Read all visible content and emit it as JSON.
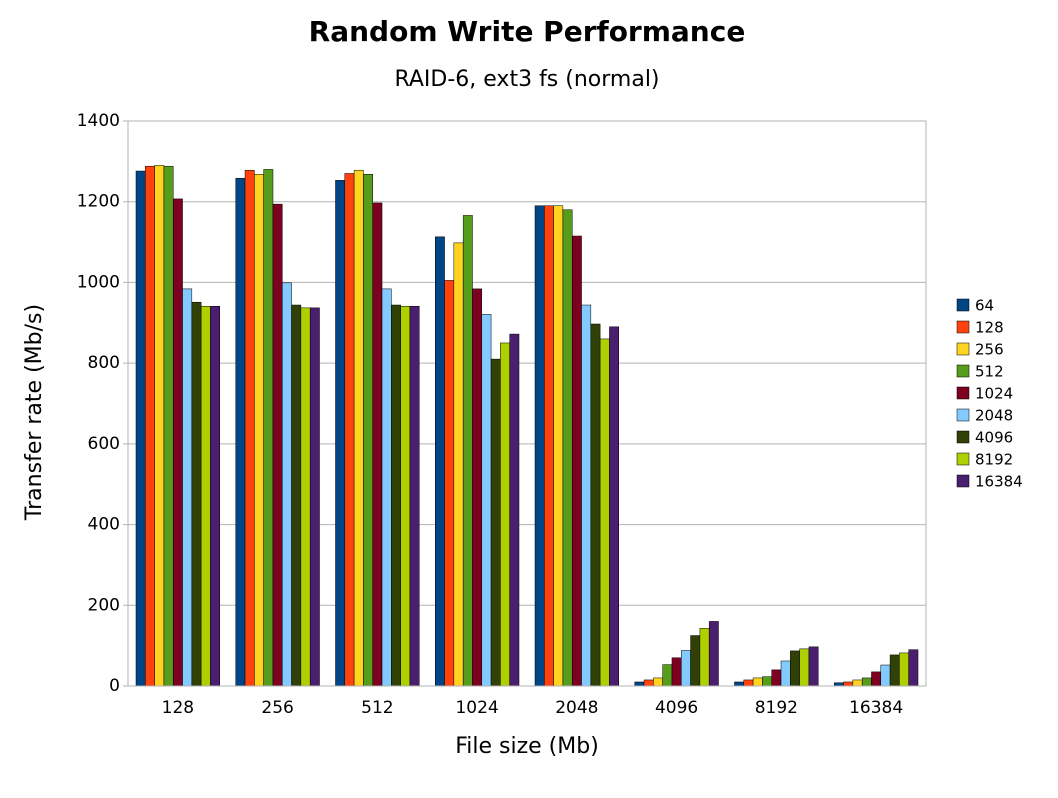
{
  "chart_data": {
    "type": "bar",
    "title": "Random Write Performance",
    "subtitle": "RAID-6, ext3 fs (normal)",
    "x_label": "File size (Mb)",
    "y_label": "Transfer rate (Mb/s)",
    "categories": [
      "128",
      "256",
      "512",
      "1024",
      "2048",
      "4096",
      "8192",
      "16384"
    ],
    "series": [
      {
        "name": "64",
        "color": "#004586",
        "values": [
          1276,
          1258,
          1253,
          1113,
          1190,
          10,
          10,
          8
        ]
      },
      {
        "name": "128",
        "color": "#ff420e",
        "values": [
          1288,
          1278,
          1270,
          1005,
          1190,
          15,
          15,
          10
        ]
      },
      {
        "name": "256",
        "color": "#ffd320",
        "values": [
          1290,
          1268,
          1278,
          1098,
          1190,
          20,
          20,
          15
        ]
      },
      {
        "name": "512",
        "color": "#579d1c",
        "values": [
          1288,
          1280,
          1268,
          1166,
          1180,
          53,
          23,
          20
        ]
      },
      {
        "name": "1024",
        "color": "#7e0021",
        "values": [
          1207,
          1194,
          1197,
          984,
          1115,
          70,
          40,
          35
        ]
      },
      {
        "name": "2048",
        "color": "#83caff",
        "values": [
          984,
          999,
          984,
          921,
          944,
          88,
          62,
          52
        ]
      },
      {
        "name": "4096",
        "color": "#314004",
        "values": [
          951,
          944,
          944,
          810,
          897,
          125,
          87,
          77
        ]
      },
      {
        "name": "8192",
        "color": "#aecf00",
        "values": [
          941,
          937,
          941,
          850,
          860,
          143,
          92,
          82
        ]
      },
      {
        "name": "16384",
        "color": "#4b1f6f",
        "values": [
          941,
          937,
          941,
          872,
          890,
          160,
          97,
          90
        ]
      }
    ],
    "ylim": [
      0,
      1400
    ],
    "yticks": [
      0,
      200,
      400,
      600,
      800,
      1000,
      1200,
      1400
    ],
    "grid": true,
    "legend": "right"
  }
}
